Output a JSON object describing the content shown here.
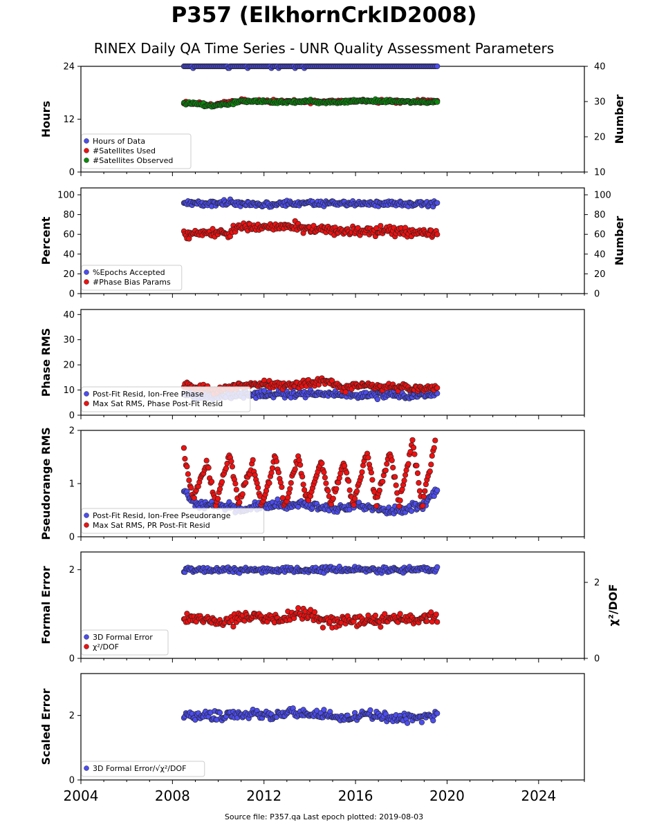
{
  "figure": {
    "title": "P357 (ElkhornCrkID2008)",
    "subtitle": "RINEX Daily QA Time Series - UNR Quality Assessment Parameters",
    "footer": "Source file: P357.qa Last epoch plotted: 2019-08-03"
  },
  "chart_data": [
    {
      "type": "scatter",
      "ylabel": "Hours",
      "ylabel_right": "Number",
      "ylim": [
        0,
        24
      ],
      "yticks": [
        "0",
        "12",
        "24"
      ],
      "ylim_right": [
        10,
        40
      ],
      "yticks_right": [
        "10",
        "20",
        "30",
        "40"
      ],
      "legend_position": "lower left",
      "series": [
        {
          "name": "Hours of Data",
          "color": "#4d4df0",
          "axis": "left",
          "x": [
            2008.5,
            2009.5,
            2010.5,
            2011.0,
            2012.0,
            2013.0,
            2014.0,
            2015.0,
            2016.0,
            2017.0,
            2018.0,
            2019.0,
            2019.6
          ],
          "y": [
            24,
            24,
            24,
            22.3,
            24,
            24,
            24,
            24,
            24,
            24,
            24,
            24,
            24
          ]
        },
        {
          "name": "#Satellites Used",
          "color": "#ee1111",
          "axis": "right",
          "x": [
            2008.5,
            2009.0,
            2009.8,
            2010.8,
            2012.0,
            2014.0,
            2016.0,
            2018.0,
            2019.6
          ],
          "y": [
            29.5,
            29.6,
            29.0,
            30.2,
            30.1,
            30.0,
            30.2,
            30.0,
            30.1
          ]
        },
        {
          "name": "#Satellites Observed",
          "color": "#0a8a0a",
          "axis": "right",
          "x": [
            2008.5,
            2009.0,
            2009.5,
            2010.0,
            2010.5,
            2011.0,
            2012.0,
            2013.0,
            2014.0,
            2015.0,
            2016.0,
            2017.0,
            2018.0,
            2019.0,
            2019.6
          ],
          "y": [
            29.5,
            29.4,
            29.0,
            28.9,
            29.3,
            30.1,
            30.0,
            29.8,
            30.1,
            29.7,
            30.2,
            30.1,
            30.0,
            29.9,
            29.8
          ]
        }
      ]
    },
    {
      "type": "scatter",
      "ylabel": "Percent",
      "ylabel_right": "Number",
      "ylim": [
        0,
        107
      ],
      "yticks": [
        "0",
        "20",
        "40",
        "60",
        "80",
        "100"
      ],
      "ylim_right": [
        0,
        107
      ],
      "yticks_right": [
        "0",
        "20",
        "40",
        "60",
        "80",
        "100"
      ],
      "legend_position": "lower left",
      "series": [
        {
          "name": "%Epochs Accepted",
          "color": "#4d4df0",
          "axis": "left",
          "x": [
            2008.5,
            2009.5,
            2010.5,
            2011.5,
            2012.5,
            2013.5,
            2014.5,
            2015.5,
            2016.5,
            2017.5,
            2018.5,
            2019.6
          ],
          "y": [
            92,
            91,
            92,
            90,
            91,
            91,
            92,
            91,
            91,
            92,
            91,
            91
          ]
        },
        {
          "name": "#Phase Bias Params",
          "color": "#ee1111",
          "axis": "right",
          "x": [
            2008.5,
            2009.5,
            2010.5,
            2011.0,
            2012.0,
            2013.0,
            2014.0,
            2015.0,
            2016.0,
            2017.0,
            2018.0,
            2019.0,
            2019.6
          ],
          "y": [
            60,
            62,
            60,
            70,
            66,
            68,
            66,
            63,
            62,
            64,
            62,
            61,
            60
          ]
        }
      ]
    },
    {
      "type": "scatter",
      "ylabel": "Phase RMS",
      "ylim": [
        0,
        42
      ],
      "yticks": [
        "0",
        "10",
        "20",
        "30",
        "40"
      ],
      "legend_position": "lower left",
      "series": [
        {
          "name": "Post-Fit Resid, Ion-Free Phase",
          "color": "#4d4df0",
          "x": [
            2008.5,
            2010.0,
            2012.0,
            2014.0,
            2016.0,
            2018.0,
            2019.6
          ],
          "y": [
            8,
            8,
            8,
            8.5,
            8,
            8,
            8
          ]
        },
        {
          "name": "Max Sat RMS, Phase Post-Fit Resid",
          "color": "#ee1111",
          "x": [
            2008.5,
            2009.0,
            2010.0,
            2011.0,
            2012.0,
            2013.0,
            2014.0,
            2014.6,
            2015.5,
            2016.2,
            2017.0,
            2017.5,
            2018.3,
            2019.0,
            2019.6
          ],
          "y": [
            12,
            11,
            10,
            12,
            12,
            12,
            13,
            14,
            11,
            12,
            11,
            11,
            11,
            10,
            11
          ]
        }
      ]
    },
    {
      "type": "scatter",
      "ylabel": "Pseudorange RMS",
      "ylim": [
        0,
        2
      ],
      "yticks": [
        "0",
        "1",
        "2"
      ],
      "legend_position": "lower left",
      "series": [
        {
          "name": "Post-Fit Resid, Ion-Free Pseudorange",
          "color": "#4d4df0",
          "x": [
            2008.5,
            2009.0,
            2010.0,
            2011.0,
            2012.0,
            2013.0,
            2014.0,
            2015.0,
            2016.0,
            2017.0,
            2018.0,
            2019.0,
            2019.6
          ],
          "y": [
            0.9,
            0.6,
            0.6,
            0.5,
            0.6,
            0.6,
            0.6,
            0.5,
            0.6,
            0.5,
            0.5,
            0.6,
            0.9
          ]
        },
        {
          "name": "Max Sat RMS, PR Post-Fit Resid",
          "color": "#ee1111",
          "x": [
            2008.5,
            2008.9,
            2009.5,
            2009.9,
            2010.5,
            2010.9,
            2011.5,
            2011.9,
            2012.5,
            2012.9,
            2013.5,
            2013.9,
            2014.5,
            2014.9,
            2015.5,
            2015.9,
            2016.5,
            2016.9,
            2017.5,
            2017.9,
            2018.5,
            2018.9,
            2019.5
          ],
          "y": [
            1.6,
            0.7,
            1.4,
            0.6,
            1.6,
            0.6,
            1.4,
            0.6,
            1.5,
            0.6,
            1.5,
            0.6,
            1.4,
            0.6,
            1.4,
            0.6,
            1.6,
            0.6,
            1.6,
            0.6,
            1.8,
            0.6,
            1.8
          ]
        }
      ]
    },
    {
      "type": "scatter",
      "ylabel": "Formal Error",
      "ylabel_right": "χ²/DOF",
      "ylim": [
        0,
        2.4
      ],
      "yticks": [
        "0",
        "2"
      ],
      "ylim_right": [
        0,
        2.8
      ],
      "yticks_right": [
        "0",
        "2"
      ],
      "legend_position": "lower left",
      "series": [
        {
          "name": "3D Formal Error",
          "color": "#4d4df0",
          "axis": "left",
          "x": [
            2008.5,
            2010.0,
            2012.0,
            2014.0,
            2016.0,
            2018.0,
            2019.6
          ],
          "y": [
            2.0,
            2.0,
            2.0,
            2.0,
            2.0,
            2.0,
            2.0
          ]
        },
        {
          "name": "χ²/DOF",
          "color": "#ee1111",
          "axis": "right",
          "x": [
            2008.5,
            2009.5,
            2010.5,
            2011.5,
            2012.5,
            2013.5,
            2014.5,
            2015.5,
            2016.5,
            2017.5,
            2018.5,
            2019.6
          ],
          "y": [
            1.1,
            1.0,
            1.0,
            1.1,
            1.0,
            1.2,
            1.0,
            1.0,
            1.0,
            1.0,
            1.0,
            1.1
          ]
        }
      ]
    },
    {
      "type": "scatter",
      "ylabel": "Scaled Error",
      "ylim": [
        0,
        3.3
      ],
      "yticks": [
        "0",
        "2"
      ],
      "legend_position": "lower left",
      "series": [
        {
          "name": "3D Formal Error/√χ²/DOF",
          "color": "#4d4df0",
          "x": [
            2008.5,
            2009.5,
            2010.5,
            2011.5,
            2012.5,
            2013.5,
            2014.5,
            2015.5,
            2016.5,
            2017.5,
            2018.5,
            2019.6
          ],
          "y": [
            2.0,
            2.0,
            2.0,
            2.0,
            2.0,
            2.1,
            2.0,
            1.9,
            2.0,
            1.9,
            1.9,
            2.0
          ]
        }
      ]
    }
  ],
  "x_axis": {
    "xlim": [
      2004,
      2026
    ],
    "ticks": [
      "2004",
      "2008",
      "2012",
      "2016",
      "2020",
      "2024"
    ]
  }
}
